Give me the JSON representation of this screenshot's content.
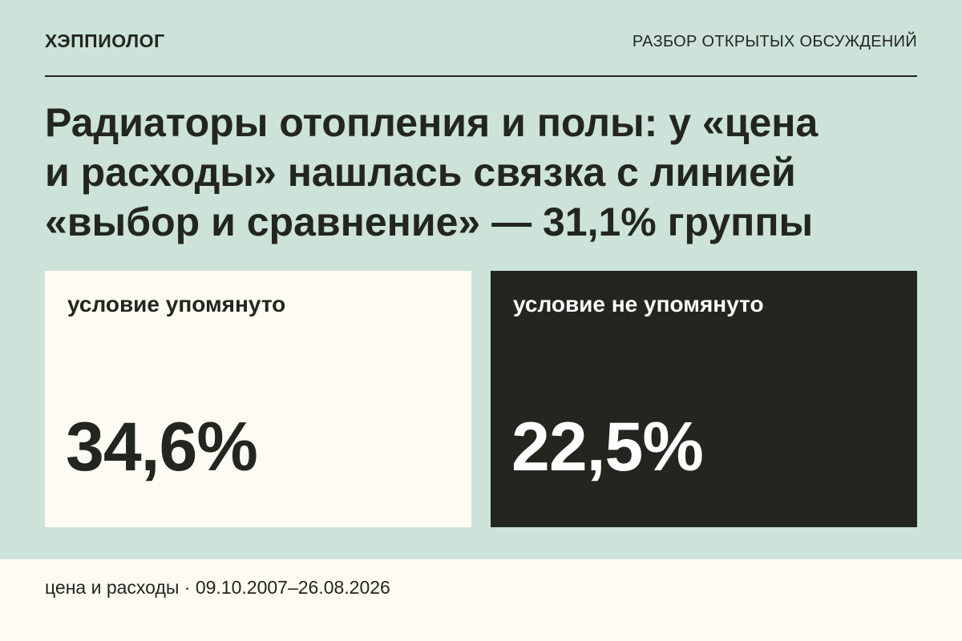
{
  "header": {
    "brand": "ХЭППИОЛОГ",
    "section": "РАЗБОР ОТКРЫТЫХ ОБСУЖДЕНИЙ"
  },
  "headline": {
    "line1": "Радиаторы отопления и полы: у «цена",
    "line2": "и расходы» нашлась связка с линией",
    "line3": "«выбор и сравнение» — 31,1% группы"
  },
  "cards": [
    {
      "label": "условие упомянуто",
      "value": "34,6%"
    },
    {
      "label": "условие не упомянуто",
      "value": "22,5%"
    }
  ],
  "footer": {
    "text": "цена и расходы · 09.10.2007–26.08.2026"
  },
  "colors": {
    "background": "#cde3da",
    "light_card": "#fdfbf3",
    "dark_card": "#23261f",
    "text_dark": "#23261f",
    "text_light": "#ffffff"
  }
}
